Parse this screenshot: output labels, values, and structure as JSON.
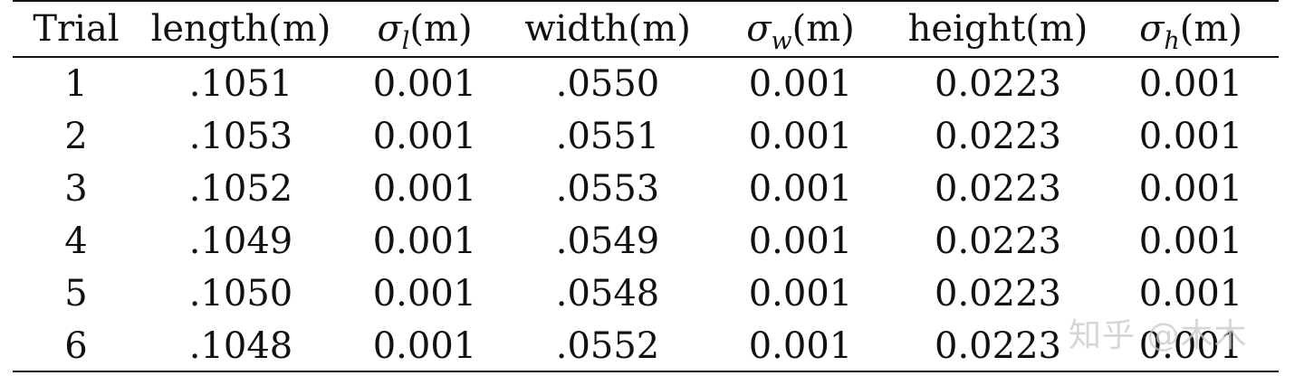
{
  "table": {
    "headers": [
      {
        "text": "Trial"
      },
      {
        "text": "length(m)"
      },
      {
        "sym": "σ",
        "sub": "l",
        "unit": "(m)"
      },
      {
        "text": "width(m)"
      },
      {
        "sym": "σ",
        "sub": "w",
        "unit": "(m)"
      },
      {
        "text": "height(m)"
      },
      {
        "sym": "σ",
        "sub": "h",
        "unit": "(m)"
      }
    ],
    "rows": [
      [
        "1",
        ".1051",
        "0.001",
        ".0550",
        "0.001",
        "0.0223",
        "0.001"
      ],
      [
        "2",
        ".1053",
        "0.001",
        ".0551",
        "0.001",
        "0.0223",
        "0.001"
      ],
      [
        "3",
        ".1052",
        "0.001",
        ".0553",
        "0.001",
        "0.0223",
        "0.001"
      ],
      [
        "4",
        ".1049",
        "0.001",
        ".0549",
        "0.001",
        "0.0223",
        "0.001"
      ],
      [
        "5",
        ".1050",
        "0.001",
        ".0548",
        "0.001",
        "0.0223",
        "0.001"
      ],
      [
        "6",
        ".1048",
        "0.001",
        ".0552",
        "0.001",
        "0.0223",
        "0.001"
      ]
    ]
  },
  "watermark": "知乎 @木木"
}
